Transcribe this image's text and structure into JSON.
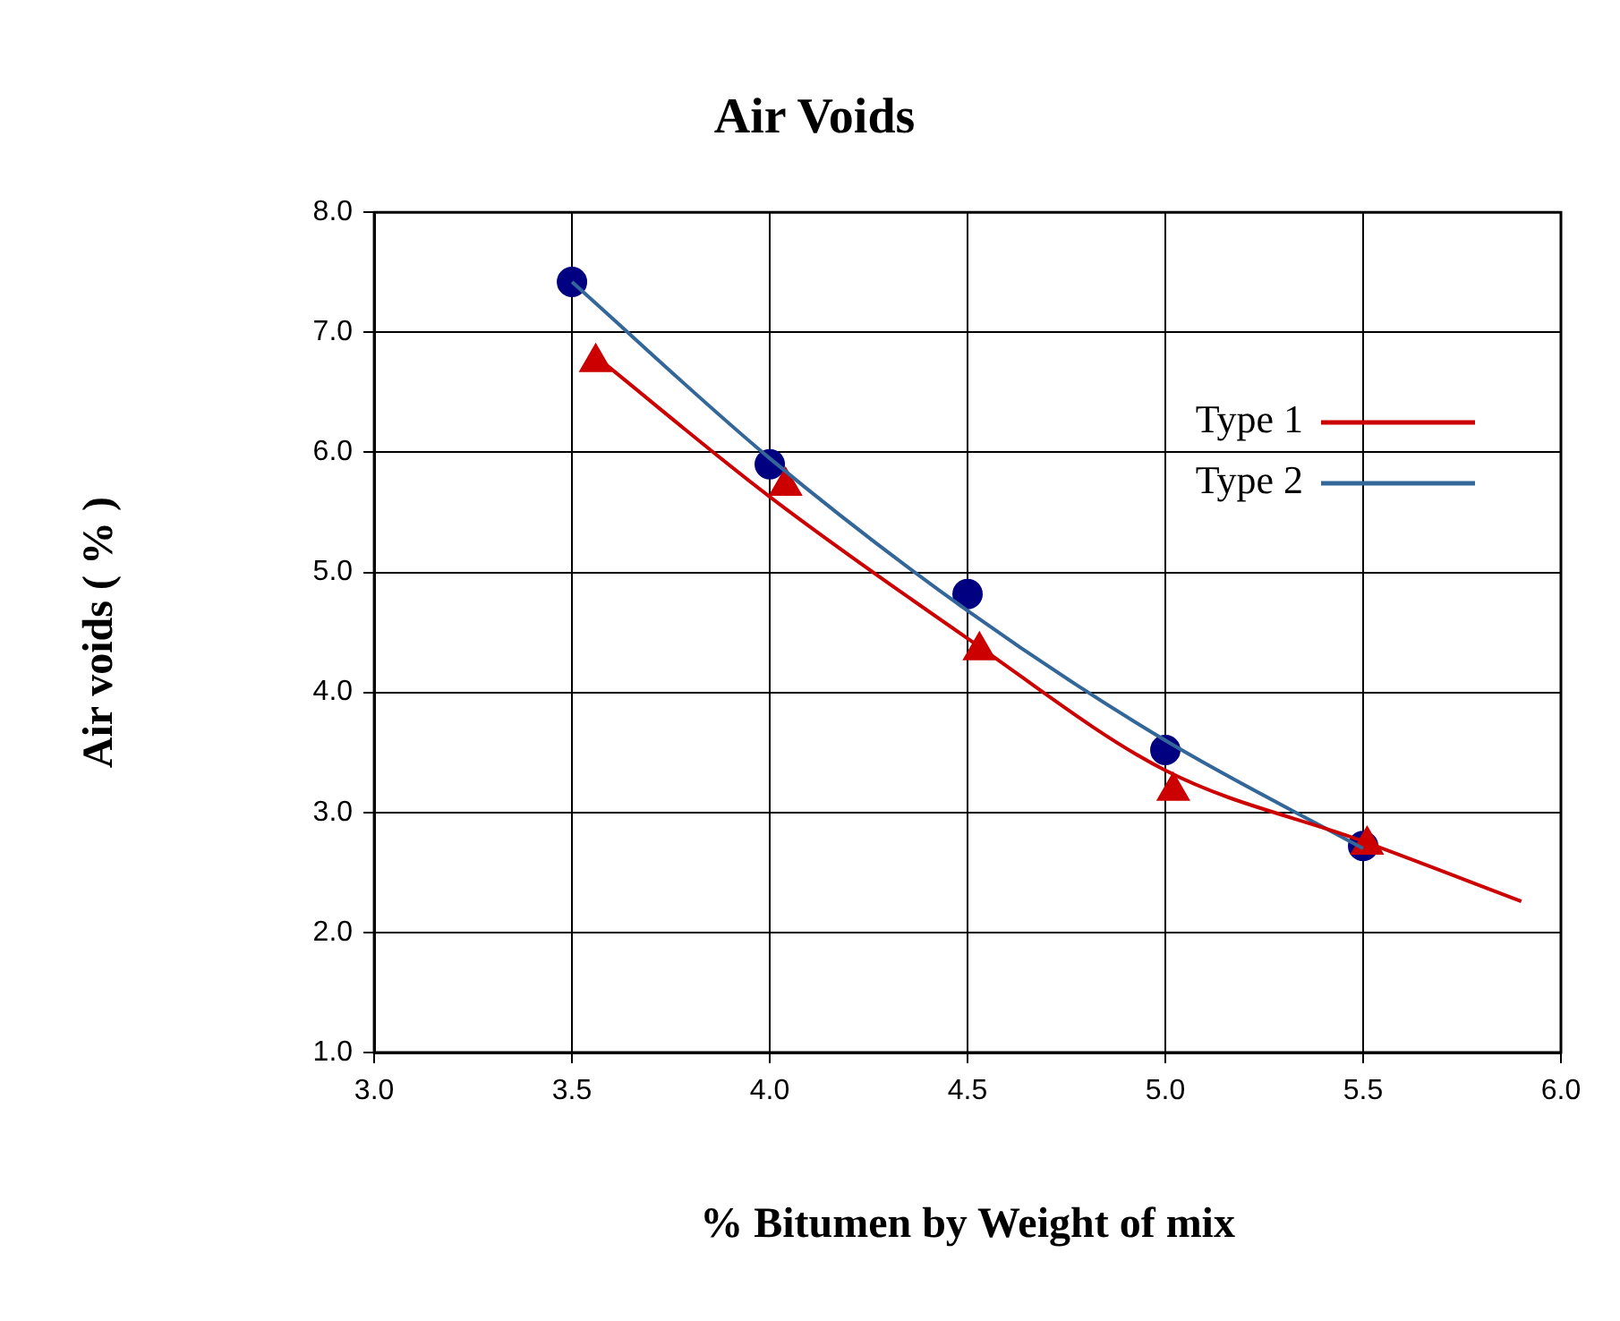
{
  "chart_data": {
    "type": "scatter",
    "title": "Air Voids",
    "xlabel": "% Bitumen by Weight of mix",
    "ylabel": "Air voids ( % )",
    "xlim": [
      3,
      6
    ],
    "xticks": [
      {
        "value": 3,
        "label": "3.0"
      },
      {
        "value": 3.5,
        "label": "3.5"
      },
      {
        "value": 4,
        "label": "4.0"
      },
      {
        "value": 4.5,
        "label": "4.5"
      },
      {
        "value": 5,
        "label": "5.0"
      },
      {
        "value": 5.5,
        "label": "5.5"
      },
      {
        "value": 6,
        "label": "6.0"
      }
    ],
    "ylim": [
      1,
      8
    ],
    "yticks": [
      {
        "value": 1,
        "label": "1.0"
      },
      {
        "value": 2,
        "label": "2.0"
      },
      {
        "value": 3,
        "label": "3.0"
      },
      {
        "value": 4,
        "label": "4.0"
      },
      {
        "value": 5,
        "label": "5.0"
      },
      {
        "value": 6,
        "label": "6.0"
      },
      {
        "value": 7,
        "label": "7.0"
      },
      {
        "value": 8,
        "label": "8.0"
      }
    ],
    "grid": true,
    "legend": "right",
    "series": [
      {
        "name": "Type 1",
        "type": "line",
        "color": "#cc0000",
        "marker": "none",
        "x": [
          3.56,
          4.0,
          4.5,
          5.0,
          5.5,
          5.9
        ],
        "values": [
          6.8,
          5.63,
          4.45,
          3.35,
          2.76,
          2.26
        ]
      },
      {
        "name": "Type 2",
        "type": "line",
        "color": "#336699",
        "marker": "none",
        "x": [
          3.5,
          4.0,
          4.5,
          5.0,
          5.5
        ],
        "values": [
          7.42,
          5.95,
          4.68,
          3.6,
          2.7
        ]
      },
      {
        "color": "#cc0000",
        "marker": "triangle",
        "x": [
          3.56,
          4.04,
          4.53,
          5.02,
          5.51
        ],
        "values": [
          6.75,
          5.72,
          4.35,
          3.18,
          2.73
        ]
      },
      {
        "color": "#000080",
        "marker": "circle",
        "x": [
          3.5,
          4.0,
          4.5,
          5.0,
          5.5
        ],
        "values": [
          7.42,
          5.9,
          4.82,
          3.52,
          2.72
        ]
      }
    ]
  }
}
